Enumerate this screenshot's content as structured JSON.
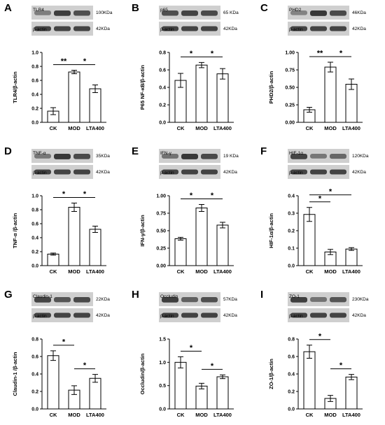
{
  "bar_color": "#ffffff",
  "line_color": "#000000",
  "blot_color": "#2a2a2a",
  "chart_data": [
    {
      "panel": "A",
      "type": "bar",
      "blot": {
        "target": "TLR4",
        "target_kda": "100KDa",
        "control": "β-actin",
        "control_kda": "42KDa",
        "intensities": [
          0.35,
          0.9,
          0.75
        ]
      },
      "categories": [
        "CK",
        "MOD",
        "LTA400"
      ],
      "values": [
        0.16,
        0.72,
        0.48
      ],
      "errors": [
        0.05,
        0.025,
        0.055
      ],
      "ylabel": "TLR4/β-actin",
      "ylim": [
        0,
        1.0
      ],
      "yticks": [
        "0.0",
        "0.2",
        "0.4",
        "0.6",
        "0.8",
        "1.0"
      ],
      "sig": [
        {
          "from": 0,
          "to": 1,
          "label": "**"
        },
        {
          "from": 1,
          "to": 2,
          "label": "*"
        }
      ]
    },
    {
      "panel": "B",
      "type": "bar",
      "blot": {
        "target": "p65",
        "target_kda": "65 KDa",
        "control": "β-actin",
        "control_kda": "42KDa",
        "intensities": [
          0.75,
          0.85,
          0.8
        ]
      },
      "categories": [
        "CK",
        "MOD",
        "LTA400"
      ],
      "values": [
        0.48,
        0.655,
        0.555
      ],
      "errors": [
        0.08,
        0.03,
        0.06
      ],
      "ylabel": "P65 NF-κB/β-actin",
      "ylim": [
        0,
        0.8
      ],
      "yticks": [
        "0.0",
        "0.2",
        "0.4",
        "0.6",
        "0.8"
      ],
      "sig": [
        {
          "from": 0,
          "to": 1,
          "label": "*"
        },
        {
          "from": 1,
          "to": 2,
          "label": "*"
        }
      ]
    },
    {
      "panel": "C",
      "type": "bar",
      "blot": {
        "target": "PHD2",
        "target_kda": "46KDa",
        "control": "β-actin",
        "control_kda": "42KDa",
        "intensities": [
          0.3,
          0.95,
          0.8
        ]
      },
      "categories": [
        "CK",
        "MOD",
        "LTA400"
      ],
      "values": [
        0.18,
        0.79,
        0.545
      ],
      "errors": [
        0.035,
        0.07,
        0.075
      ],
      "ylabel": "PHD2/β-actin",
      "ylim": [
        0,
        1.0
      ],
      "yticks": [
        "0.00",
        "0.25",
        "0.50",
        "0.75",
        "1.00"
      ],
      "sig": [
        {
          "from": 0,
          "to": 1,
          "label": "**"
        },
        {
          "from": 1,
          "to": 2,
          "label": "*"
        }
      ]
    },
    {
      "panel": "D",
      "type": "bar",
      "blot": {
        "target": "TNF-α",
        "target_kda": "35KDa",
        "control": "β-actin",
        "control_kda": "42KDa",
        "intensities": [
          0.4,
          0.95,
          0.8
        ]
      },
      "categories": [
        "CK",
        "MOD",
        "LTA400"
      ],
      "values": [
        0.165,
        0.835,
        0.52
      ],
      "errors": [
        0.015,
        0.06,
        0.045
      ],
      "ylabel": "TNF-α /β-actin",
      "ylim": [
        0,
        1.0
      ],
      "yticks": [
        "0.0",
        "0.2",
        "0.4",
        "0.6",
        "0.8",
        "1.0"
      ],
      "sig": [
        {
          "from": 0,
          "to": 1,
          "label": "*"
        },
        {
          "from": 1,
          "to": 2,
          "label": "*"
        }
      ]
    },
    {
      "panel": "E",
      "type": "bar",
      "blot": {
        "target": "IFN-γ",
        "target_kda": "19 KDa",
        "control": "β-actin",
        "control_kda": "42KDa",
        "intensities": [
          0.45,
          0.95,
          0.8
        ]
      },
      "categories": [
        "CK",
        "MOD",
        "LTA400"
      ],
      "values": [
        0.385,
        0.825,
        0.58
      ],
      "errors": [
        0.02,
        0.05,
        0.04
      ],
      "ylabel": "IFN-γ/β-actin",
      "ylim": [
        0,
        1.0
      ],
      "yticks": [
        "0.00",
        "0.25",
        "0.50",
        "0.75",
        "1.00"
      ],
      "sig": [
        {
          "from": 0,
          "to": 1,
          "label": "*"
        },
        {
          "from": 1,
          "to": 2,
          "label": "*"
        }
      ]
    },
    {
      "panel": "F",
      "type": "bar",
      "blot": {
        "target": "HIF-1α",
        "target_kda": "120KDa",
        "control": "β-actin",
        "control_kda": "42KDa",
        "intensities": [
          0.85,
          0.4,
          0.55
        ]
      },
      "categories": [
        "CK",
        "MOD",
        "LTA400"
      ],
      "values": [
        0.293,
        0.078,
        0.095
      ],
      "errors": [
        0.04,
        0.015,
        0.008
      ],
      "ylabel": "HIF-1α/β-actin",
      "ylim": [
        0,
        0.4
      ],
      "yticks": [
        "0.0",
        "0.1",
        "0.2",
        "0.3",
        "0.4"
      ],
      "sig": [
        {
          "from": 0,
          "to": 1,
          "label": "*"
        },
        {
          "from": 0,
          "to": 2,
          "label": "*"
        }
      ]
    },
    {
      "panel": "G",
      "type": "bar",
      "blot": {
        "target": "Claudin-1",
        "target_kda": "22KDa",
        "control": "β-actin",
        "control_kda": "42KDa",
        "intensities": [
          0.85,
          0.7,
          0.8
        ]
      },
      "categories": [
        "CK",
        "MOD",
        "LTA400"
      ],
      "values": [
        0.61,
        0.215,
        0.35
      ],
      "errors": [
        0.055,
        0.05,
        0.045
      ],
      "ylabel": "Claudin-1 /β-actin",
      "ylim": [
        0,
        0.8
      ],
      "yticks": [
        "0.0",
        "0.2",
        "0.4",
        "0.6",
        "0.8"
      ],
      "sig": [
        {
          "from": 0,
          "to": 1,
          "label": "*"
        },
        {
          "from": 1,
          "to": 2,
          "label": "*"
        }
      ]
    },
    {
      "panel": "H",
      "type": "bar",
      "blot": {
        "target": "Occludin",
        "target_kda": "57KDa",
        "control": "β-actin",
        "control_kda": "42KDa",
        "intensities": [
          0.9,
          0.6,
          0.75
        ]
      },
      "categories": [
        "CK",
        "MOD",
        "LTA400"
      ],
      "values": [
        1.0,
        0.49,
        0.69
      ],
      "errors": [
        0.12,
        0.06,
        0.04
      ],
      "ylabel": "Occludin/β-actin",
      "ylim": [
        0,
        1.5
      ],
      "yticks": [
        "0.0",
        "0.5",
        "1.0",
        "1.5"
      ],
      "sig": [
        {
          "from": 0,
          "to": 1,
          "label": "*"
        },
        {
          "from": 1,
          "to": 2,
          "label": "*"
        }
      ]
    },
    {
      "panel": "I",
      "type": "bar",
      "blot": {
        "target": "ZO-1",
        "target_kda": "230KDa",
        "control": "β-actin",
        "control_kda": "42KDa",
        "intensities": [
          0.9,
          0.45,
          0.7
        ]
      },
      "categories": [
        "CK",
        "MOD",
        "LTA400"
      ],
      "values": [
        0.655,
        0.12,
        0.365
      ],
      "errors": [
        0.075,
        0.035,
        0.03
      ],
      "ylabel": "ZO-1/β-actin",
      "ylim": [
        0,
        0.8
      ],
      "yticks": [
        "0.0",
        "0.2",
        "0.4",
        "0.6",
        "0.8"
      ],
      "sig": [
        {
          "from": 0,
          "to": 1,
          "label": "*"
        },
        {
          "from": 1,
          "to": 2,
          "label": "*"
        }
      ]
    }
  ]
}
